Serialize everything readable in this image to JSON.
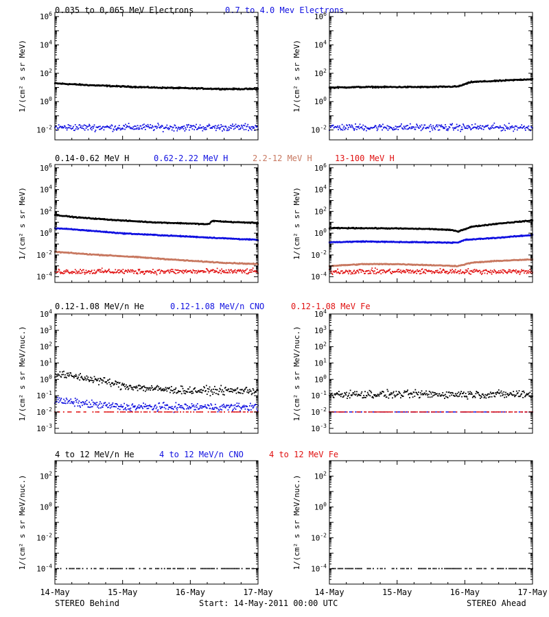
{
  "colors": {
    "axis": "#000000",
    "black": "#000000",
    "blue": "#1010e0",
    "tan": "#c87860",
    "red": "#e01010"
  },
  "footer": {
    "left": "STEREO Behind",
    "center": "Start: 14-May-2011 00:00 UTC",
    "right": "STEREO Ahead"
  },
  "chart_data": [
    {
      "type": "scatter",
      "row": 1,
      "ylabel": "1/(cm² s sr MeV)",
      "yscale": "log",
      "ylim": [
        0.002,
        2000000
      ],
      "yticks": [
        "10^-2",
        "10^0",
        "10^2",
        "10^4",
        "10^6"
      ],
      "xlim": [
        "14-May",
        "17-May"
      ],
      "xticks": [
        "14-May",
        "15-May",
        "16-May",
        "17-May"
      ],
      "legend": [
        {
          "label": "0.035 to 0.065 MeV Electrons",
          "color": "black"
        },
        {
          "label": "0.7 to 4.0 Mev Electrons",
          "color": "blue"
        }
      ],
      "panels": [
        {
          "spacecraft": "STEREO Behind",
          "series": [
            {
              "name": "0.035 to 0.065 MeV Electrons",
              "color": "black",
              "style": "band",
              "x": [
                0,
                0.5,
                1,
                1.5,
                2,
                2.5,
                3
              ],
              "y": [
                20,
                15,
                12,
                10,
                9,
                8,
                8
              ]
            },
            {
              "name": "0.7 to 4.0 Mev Electrons",
              "color": "blue",
              "style": "noise",
              "x": [
                0,
                3
              ],
              "y": [
                0.015,
                0.015
              ]
            }
          ]
        },
        {
          "spacecraft": "STEREO Ahead",
          "series": [
            {
              "name": "0.035 to 0.065 MeV Electrons",
              "color": "black",
              "style": "band",
              "x": [
                0,
                0.5,
                1,
                1.5,
                1.9,
                2.1,
                2.5,
                3
              ],
              "y": [
                10,
                11,
                11,
                11,
                12,
                25,
                30,
                40
              ]
            },
            {
              "name": "0.7 to 4.0 Mev Electrons",
              "color": "blue",
              "style": "noise",
              "x": [
                0,
                3
              ],
              "y": [
                0.015,
                0.015
              ]
            }
          ]
        }
      ]
    },
    {
      "type": "scatter",
      "row": 2,
      "ylabel": "1/(cm² s sr MeV)",
      "yscale": "log",
      "ylim": [
        3e-05,
        2000000
      ],
      "yticks": [
        "10^-4",
        "10^-2",
        "10^0",
        "10^2",
        "10^4",
        "10^6"
      ],
      "xlim": [
        "14-May",
        "17-May"
      ],
      "xticks": [
        "14-May",
        "15-May",
        "16-May",
        "17-May"
      ],
      "legend": [
        {
          "label": "0.14-0.62 MeV H",
          "color": "black"
        },
        {
          "label": "0.62-2.22 MeV H",
          "color": "blue"
        },
        {
          "label": "2.2-12 MeV H",
          "color": "tan"
        },
        {
          "label": "13-100 MeV H",
          "color": "red"
        }
      ],
      "panels": [
        {
          "spacecraft": "STEREO Behind",
          "series": [
            {
              "name": "0.14-0.62 MeV H",
              "color": "black",
              "style": "band",
              "x": [
                0,
                0.3,
                0.7,
                1,
                1.5,
                2,
                2.2,
                2.28,
                2.32,
                2.6,
                3
              ],
              "y": [
                50,
                30,
                20,
                15,
                10,
                8,
                7,
                7,
                14,
                11,
                9
              ]
            },
            {
              "name": "0.62-2.22 MeV H",
              "color": "blue",
              "style": "band",
              "x": [
                0,
                0.5,
                1,
                1.5,
                2,
                2.5,
                3
              ],
              "y": [
                3,
                1.8,
                1.0,
                0.7,
                0.5,
                0.35,
                0.25
              ]
            },
            {
              "name": "2.2-12 MeV H",
              "color": "tan",
              "style": "band",
              "x": [
                0,
                0.5,
                1,
                1.5,
                2,
                2.5,
                3
              ],
              "y": [
                0.02,
                0.012,
                0.008,
                0.005,
                0.003,
                0.002,
                0.0015
              ]
            },
            {
              "name": "13-100 MeV H",
              "color": "red",
              "style": "noise",
              "x": [
                0,
                3
              ],
              "y": [
                0.0003,
                0.0003
              ]
            }
          ]
        },
        {
          "spacecraft": "STEREO Ahead",
          "series": [
            {
              "name": "0.14-0.62 MeV H",
              "color": "black",
              "style": "band",
              "x": [
                0,
                0.5,
                1,
                1.5,
                1.8,
                1.9,
                2.1,
                2.5,
                3
              ],
              "y": [
                3,
                3,
                2.8,
                2.5,
                2,
                1.5,
                4,
                8,
                15
              ]
            },
            {
              "name": "0.62-2.22 MeV H",
              "color": "blue",
              "style": "band",
              "x": [
                0,
                0.5,
                1,
                1.5,
                1.9,
                2.0,
                2.5,
                3
              ],
              "y": [
                0.15,
                0.18,
                0.16,
                0.15,
                0.14,
                0.25,
                0.4,
                0.7
              ]
            },
            {
              "name": "2.2-12 MeV H",
              "color": "tan",
              "style": "band",
              "x": [
                0,
                0.5,
                1,
                1.5,
                1.9,
                2.1,
                2.5,
                3
              ],
              "y": [
                0.001,
                0.0015,
                0.0015,
                0.0012,
                0.001,
                0.002,
                0.003,
                0.004
              ]
            },
            {
              "name": "13-100 MeV H",
              "color": "red",
              "style": "noise",
              "x": [
                0,
                3
              ],
              "y": [
                0.0003,
                0.0003
              ]
            }
          ]
        }
      ]
    },
    {
      "type": "scatter",
      "row": 3,
      "ylabel": "1/(cm² s sr MeV/nuc.)",
      "yscale": "log",
      "ylim": [
        0.0005,
        10000
      ],
      "yticks": [
        "10^-3",
        "10^-2",
        "10^-1",
        "10^0",
        "10^1",
        "10^2",
        "10^3",
        "10^4"
      ],
      "xlim": [
        "14-May",
        "17-May"
      ],
      "xticks": [
        "14-May",
        "15-May",
        "16-May",
        "17-May"
      ],
      "legend": [
        {
          "label": "0.12-1.08 MeV/n He",
          "color": "black"
        },
        {
          "label": "0.12-1.08 MeV/n CNO",
          "color": "blue"
        },
        {
          "label": "0.12-1.08 MeV Fe",
          "color": "red"
        }
      ],
      "panels": [
        {
          "spacecraft": "STEREO Behind",
          "series": [
            {
              "name": "0.12-1.08 MeV/n He",
              "color": "black",
              "style": "noise",
              "x": [
                0,
                0.3,
                0.7,
                1,
                1.5,
                2,
                2.5,
                3
              ],
              "y": [
                2,
                1.5,
                0.8,
                0.4,
                0.25,
                0.2,
                0.2,
                0.2
              ]
            },
            {
              "name": "0.12-1.08 MeV/n CNO",
              "color": "blue",
              "style": "noise",
              "x": [
                0,
                0.5,
                1,
                3
              ],
              "y": [
                0.05,
                0.03,
                0.02,
                0.02
              ]
            },
            {
              "name": "0.12-1.08 MeV Fe",
              "color": "red",
              "style": "line",
              "x": [
                0,
                3
              ],
              "y": [
                0.01,
                0.01
              ]
            }
          ]
        },
        {
          "spacecraft": "STEREO Ahead",
          "series": [
            {
              "name": "0.12-1.08 MeV/n He",
              "color": "black",
              "style": "noise",
              "x": [
                0,
                3
              ],
              "y": [
                0.12,
                0.12
              ]
            },
            {
              "name": "0.12-1.08 MeV/n CNO",
              "color": "blue",
              "style": "line",
              "x": [
                0,
                3
              ],
              "y": [
                0.01,
                0.01
              ]
            },
            {
              "name": "0.12-1.08 MeV Fe",
              "color": "red",
              "style": "line",
              "x": [
                0,
                3
              ],
              "y": [
                0.01,
                0.01
              ]
            }
          ]
        }
      ]
    },
    {
      "type": "scatter",
      "row": 4,
      "ylabel": "1/(cm² s sr MeV/nuc.)",
      "yscale": "log",
      "ylim": [
        1e-05,
        1000
      ],
      "yticks": [
        "10^-4",
        "10^-2",
        "10^0",
        "10^2"
      ],
      "xlim": [
        "14-May",
        "17-May"
      ],
      "xticks": [
        "14-May",
        "15-May",
        "16-May",
        "17-May"
      ],
      "legend": [
        {
          "label": "4 to 12 MeV/n He",
          "color": "black"
        },
        {
          "label": "4 to 12 MeV/n CNO",
          "color": "blue"
        },
        {
          "label": "4 to 12 MeV Fe",
          "color": "red"
        }
      ],
      "panels": [
        {
          "spacecraft": "STEREO Behind",
          "series": [
            {
              "name": "4 to 12 MeV/n He",
              "color": "black",
              "style": "line",
              "x": [
                0,
                3
              ],
              "y": [
                0.0001,
                0.0001
              ]
            }
          ]
        },
        {
          "spacecraft": "STEREO Ahead",
          "series": [
            {
              "name": "4 to 12 MeV/n He",
              "color": "black",
              "style": "line",
              "x": [
                0,
                3
              ],
              "y": [
                0.0001,
                0.0001
              ]
            }
          ]
        }
      ]
    }
  ]
}
